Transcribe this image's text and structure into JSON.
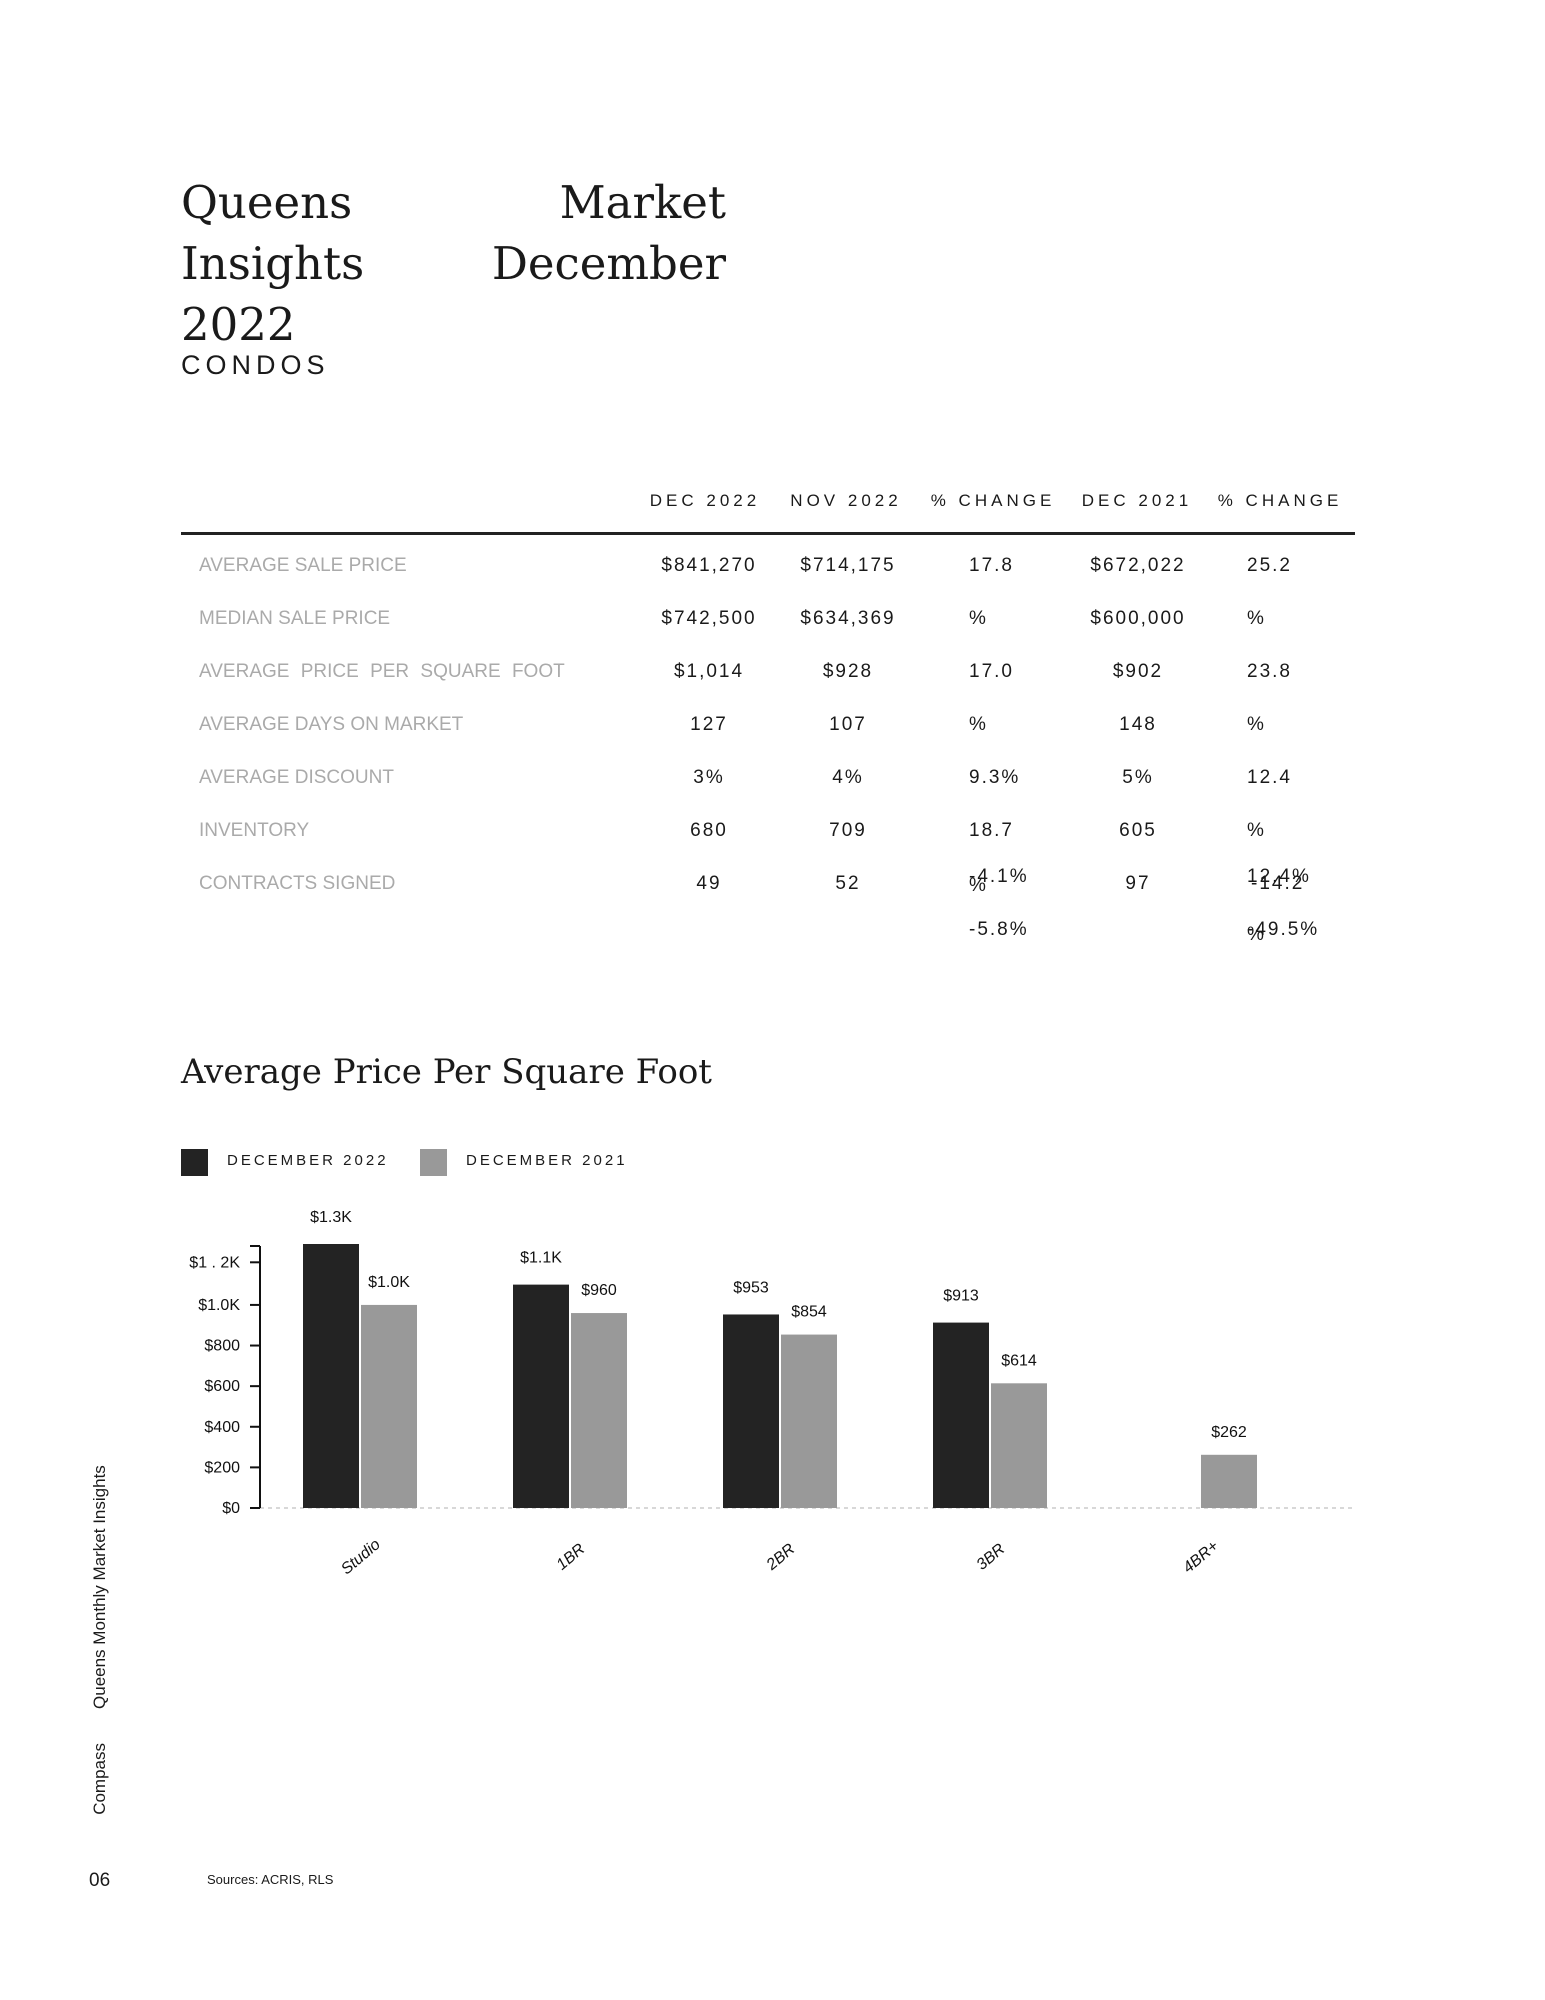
{
  "header": {
    "title": "Queens Market Insights December 2022",
    "subtitle": "CONDOS"
  },
  "table": {
    "columns": [
      "DEC 2022",
      "NOV 2022",
      "% CHANGE",
      "DEC 2021",
      "% CHANGE"
    ],
    "rows": [
      {
        "label": "AVERAGE SALE PRICE",
        "dec2022": "$841,270",
        "nov2022": "$714,175",
        "dec2021": "$672,022"
      },
      {
        "label": "MEDIAN SALE PRICE",
        "dec2022": "$742,500",
        "nov2022": "$634,369",
        "dec2021": "$600,000"
      },
      {
        "label": "AVERAGE PRICE PER SQUARE FOOT",
        "dec2022": "$1,014",
        "nov2022": "$928",
        "dec2021": "$902"
      },
      {
        "label": "AVERAGE DAYS ON MARKET",
        "dec2022": "127",
        "nov2022": "107",
        "dec2021": "148"
      },
      {
        "label": "AVERAGE DISCOUNT",
        "dec2022": "3%",
        "nov2022": "4%",
        "dec2021": "5%"
      },
      {
        "label": "INVENTORY",
        "dec2022": "680",
        "nov2022": "709",
        "dec2021": "605"
      },
      {
        "label": "CONTRACTS SIGNED",
        "dec2022": "49",
        "nov2022": "52",
        "dec2021": "97"
      }
    ],
    "pct_change_mom": [
      "17.8",
      "%",
      "17.0",
      "%",
      "9.3%",
      "18.7",
      "%",
      "-4.1%",
      "-5.8%"
    ],
    "pct_change_yoy": [
      "25.2",
      "%",
      "23.8",
      "%",
      "12.4",
      "%",
      "-14.2",
      "12.4%",
      "%",
      "-49.5%"
    ]
  },
  "chart_data": {
    "type": "bar",
    "title": "Average Price Per Square Foot",
    "categories": [
      "Studio",
      "1BR",
      "2BR",
      "3BR",
      "4BR+"
    ],
    "series": [
      {
        "name": "DECEMBER 2022",
        "color": "#232323",
        "values": [
          1300,
          1100,
          953,
          913,
          null
        ],
        "labels": [
          "$1.3K",
          "$1.1K",
          "$953",
          "$913",
          ""
        ]
      },
      {
        "name": "DECEMBER 2021",
        "color": "#999999",
        "values": [
          1000,
          960,
          854,
          614,
          262
        ],
        "labels": [
          "$1.0K",
          "$960",
          "$854",
          "$614",
          "$262"
        ]
      }
    ],
    "y_ticks": [
      "$0",
      "$200",
      "$400",
      "$600",
      "$800",
      "$1.0K",
      "$1 . 2K"
    ],
    "ylim": [
      0,
      1300
    ],
    "legend": "top-left"
  },
  "sidebar": {
    "brand": "Compass",
    "publication": "Queens Monthly Market Insights"
  },
  "footer": {
    "page_number": "06",
    "sources": "Sources: ACRIS, RLS"
  }
}
